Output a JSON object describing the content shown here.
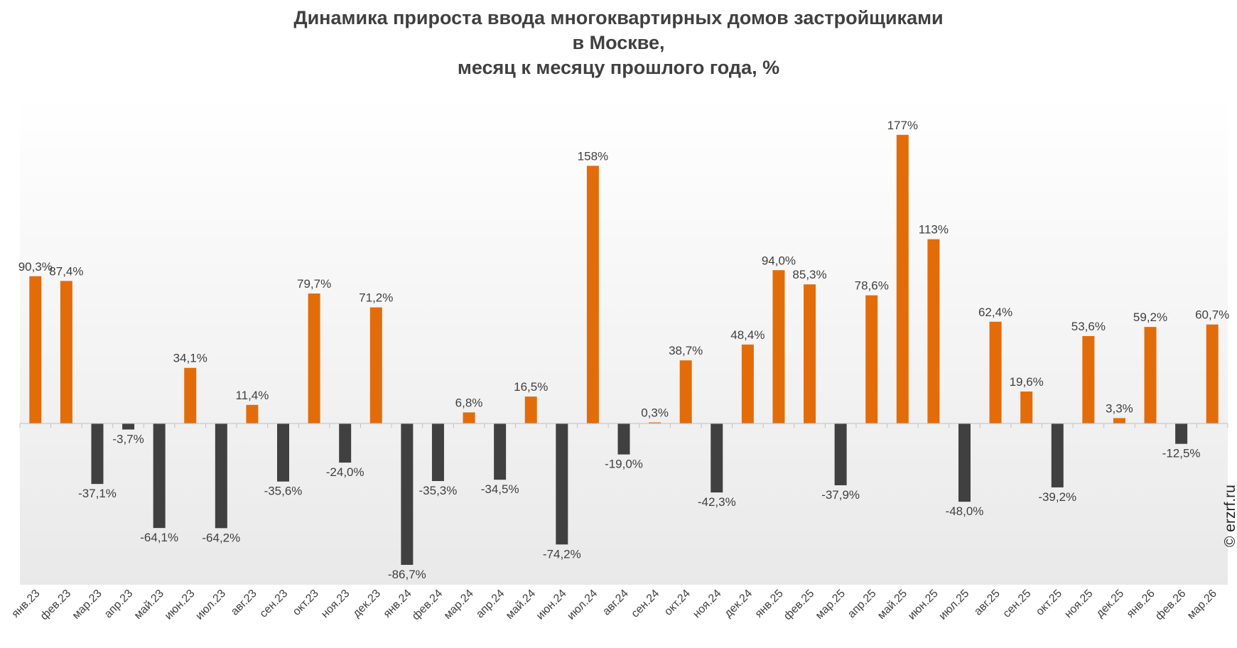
{
  "chart_data": {
    "type": "bar",
    "title_lines": [
      "Динамика прироста ввода многоквартирных домов застройщиками",
      "в Москве,",
      "месяц к месяцу прошлого года, %"
    ],
    "categories": [
      "янв.23",
      "фев.23",
      "мар.23",
      "апр.23",
      "май.23",
      "июн.23",
      "июл.23",
      "авг.23",
      "сен.23",
      "окт.23",
      "ноя.23",
      "дек.23",
      "янв.24",
      "фев.24",
      "мар.24",
      "апр.24",
      "май.24",
      "июн.24",
      "июл.24",
      "авг.24",
      "сен.24",
      "окт.24",
      "ноя.24",
      "дек.24",
      "янв.25",
      "фев.25",
      "мар.25",
      "апр.25",
      "май.25",
      "июн.25",
      "июл.25",
      "авг.25",
      "сен.25",
      "окт.25",
      "ноя.25",
      "дек.25",
      "янв.26",
      "фев.26",
      "мар.26"
    ],
    "values": [
      90.3,
      87.4,
      -37.1,
      -3.7,
      -64.1,
      34.1,
      -64.2,
      11.4,
      -35.6,
      79.7,
      -24.0,
      71.2,
      -86.7,
      -35.3,
      6.8,
      -34.5,
      16.5,
      -74.2,
      158,
      -19.0,
      0.3,
      38.7,
      -42.3,
      48.4,
      94.0,
      85.3,
      -37.9,
      78.6,
      177,
      113,
      -48.0,
      62.4,
      19.6,
      -39.2,
      53.6,
      3.3,
      59.2,
      -12.5,
      60.7
    ],
    "data_labels": [
      "90,3%",
      "87,4%",
      "-37,1%",
      "-3,7%",
      "-64,1%",
      "34,1%",
      "-64,2%",
      "11,4%",
      "-35,6%",
      "79,7%",
      "-24,0%",
      "71,2%",
      "-86,7%",
      "-35,3%",
      "6,8%",
      "-34,5%",
      "16,5%",
      "-74,2%",
      "158%",
      "-19,0%",
      "0,3%",
      "38,7%",
      "-42,3%",
      "48,4%",
      "94,0%",
      "85,3%",
      "-37,9%",
      "78,6%",
      "177%",
      "113%",
      "-48,0%",
      "62,4%",
      "19,6%",
      "-39,2%",
      "53,6%",
      "3,3%",
      "59,2%",
      "-12,5%",
      "60,7%"
    ],
    "colors": {
      "positive": "#E36C0A",
      "negative": "#404040"
    },
    "grid": false,
    "legend": "none"
  },
  "watermark": "© erzrf.ru"
}
